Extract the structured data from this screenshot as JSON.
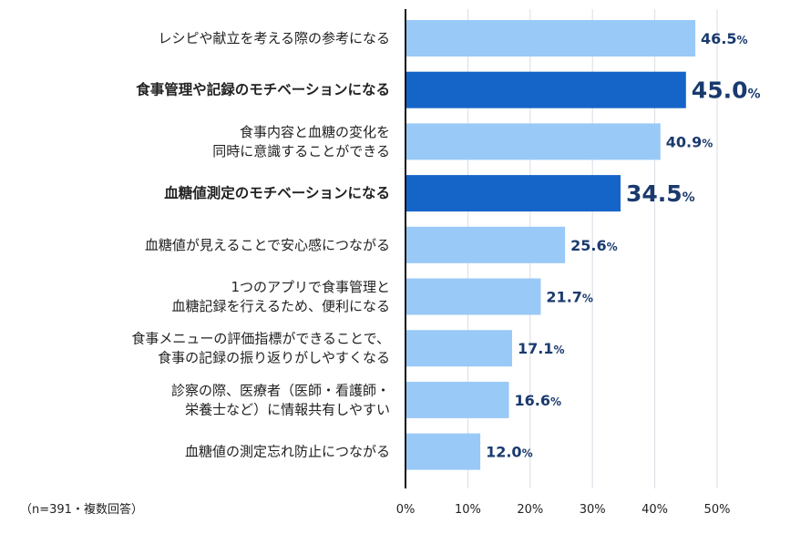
{
  "chart_data": {
    "type": "bar",
    "orientation": "horizontal",
    "categories": [
      [
        "レシピや献立を考える際の参考になる"
      ],
      [
        "食事管理や記録のモチベーションになる"
      ],
      [
        "食事内容と血糖の変化を",
        "同時に意識することができる"
      ],
      [
        "血糖値測定のモチベーションになる"
      ],
      [
        "血糖値が見えることで安心感につながる"
      ],
      [
        "1つのアプリで食事管理と",
        "血糖記録を行えるため、便利になる"
      ],
      [
        "食事メニューの評価指標ができることで、",
        "食事の記録の振り返りがしやすくなる"
      ],
      [
        "診察の際、医療者（医師・看護師・",
        "栄養士など）に情報共有しやすい"
      ],
      [
        "血糖値の測定忘れ防止につながる"
      ]
    ],
    "values": [
      46.5,
      45.0,
      40.9,
      34.5,
      25.6,
      21.7,
      17.1,
      16.6,
      12.0
    ],
    "value_labels": [
      "46.5",
      "45.0",
      "40.9",
      "34.5",
      "25.6",
      "21.7",
      "17.1",
      "16.6",
      "12.0"
    ],
    "value_suffix": "%",
    "highlighted": [
      false,
      true,
      false,
      true,
      false,
      false,
      false,
      false,
      false
    ],
    "xlim": [
      0,
      50
    ],
    "ticks": [
      0,
      10,
      20,
      30,
      40,
      50
    ],
    "tick_labels": [
      "0%",
      "10%",
      "20%",
      "30%",
      "40%",
      "50%"
    ],
    "grid": true,
    "colors": {
      "normal": "#99c9f7",
      "highlight": "#1565c8",
      "value_text": "#1a3a6e"
    }
  },
  "note": "（n=391・複数回答）"
}
